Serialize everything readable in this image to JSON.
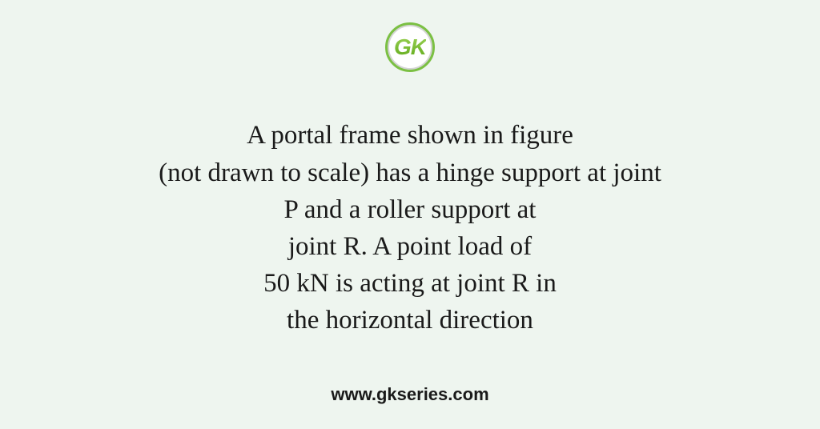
{
  "logo": {
    "text": "GK",
    "border_color": "#7bc043",
    "gradient_start": "#9dd356",
    "gradient_end": "#5da818"
  },
  "content": {
    "line1": "A portal frame shown in figure",
    "line2": "(not drawn to scale) has a hinge support at joint",
    "line3": "P and a roller support at",
    "line4": "joint R. A point load of",
    "line5": "50 kN is acting at joint R in",
    "line6": "the horizontal direction"
  },
  "footer": {
    "url": "www.gkseries.com"
  },
  "styling": {
    "background_color": "#eef5ef",
    "text_color": "#1a1a1a",
    "main_font_size": 33,
    "footer_font_size": 22,
    "line_height": 1.4
  }
}
